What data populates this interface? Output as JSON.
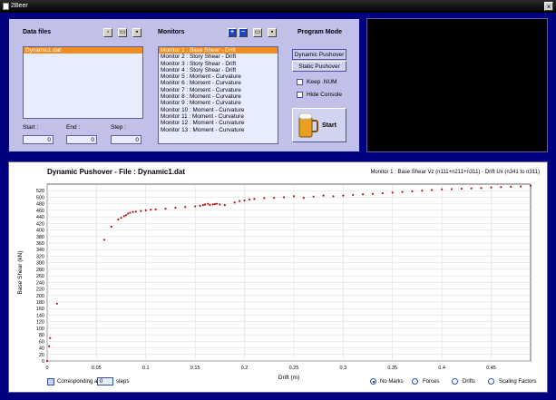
{
  "window": {
    "title": "2Beer"
  },
  "data_files": {
    "label": "Data files",
    "items": [
      "Dynamic1.dat"
    ],
    "start_label": "Start :",
    "start_value": "0",
    "end_label": "End :",
    "end_value": "0",
    "step_label": "Step :",
    "step_value": "0"
  },
  "monitors": {
    "label": "Monitors",
    "items": [
      "Monitor 1 : Base Shear - Drift",
      "Monitor 2 : Story Shear - Drift",
      "Monitor 3 : Story Shear - Drift",
      "Monitor 4 : Story Shear - Drift",
      "Monitor 5 : Moment - Curvature",
      "Monitor 6 : Moment - Curvature",
      "Monitor 7 : Moment - Curvature",
      "Monitor 8 : Moment - Curvature",
      "Monitor 9 : Moment - Curvature",
      "Monitor 10 : Moment - Curvature",
      "Monitor 11 : Moment - Curvature",
      "Monitor 12 : Moment - Curvature",
      "Monitor 13 : Moment - Curvature"
    ]
  },
  "program_mode": {
    "label": "Program Mode",
    "dynamic_btn": "Dynamic Pushover",
    "static_btn": "Static Pushover",
    "keep_num": "Keep .NUM",
    "hide_console": "Hide Console",
    "start": "Start"
  },
  "chart_header": {
    "title": "Dynamic Pushover - File : Dynamic1.dat",
    "subtitle": "Monitor 1 : Base Shear Vz (n111+n211+n311) - Drift Ux (n341 to n311)"
  },
  "chart_data": {
    "type": "scatter",
    "xlabel": "Drift (m)",
    "ylabel": "Base Shear (kN)",
    "xlim": [
      0,
      0.49
    ],
    "ylim": [
      0,
      540
    ],
    "xticks": [
      "0",
      "0.05",
      "0.1",
      "0.15",
      "0.2",
      "0.25",
      "0.3",
      "0.35",
      "0.4",
      "0.45"
    ],
    "yticks": [
      "0",
      "20",
      "40",
      "60",
      "80",
      "100",
      "120",
      "140",
      "160",
      "180",
      "200",
      "220",
      "240",
      "260",
      "280",
      "300",
      "320",
      "340",
      "360",
      "380",
      "400",
      "420",
      "440",
      "460",
      "480",
      "500",
      "520"
    ],
    "grid": true,
    "color": "#b01818",
    "points": [
      [
        0.0,
        0
      ],
      [
        0.002,
        45
      ],
      [
        0.003,
        70
      ],
      [
        0.01,
        175
      ],
      [
        0.058,
        370
      ],
      [
        0.065,
        410
      ],
      [
        0.072,
        432
      ],
      [
        0.075,
        437
      ],
      [
        0.078,
        442
      ],
      [
        0.08,
        445
      ],
      [
        0.082,
        450
      ],
      [
        0.084,
        453
      ],
      [
        0.087,
        455
      ],
      [
        0.09,
        456
      ],
      [
        0.095,
        458
      ],
      [
        0.1,
        460
      ],
      [
        0.105,
        462
      ],
      [
        0.11,
        463
      ],
      [
        0.12,
        465
      ],
      [
        0.13,
        468
      ],
      [
        0.14,
        470
      ],
      [
        0.15,
        472
      ],
      [
        0.155,
        474
      ],
      [
        0.158,
        476
      ],
      [
        0.16,
        478
      ],
      [
        0.163,
        480
      ],
      [
        0.165,
        476
      ],
      [
        0.168,
        478
      ],
      [
        0.17,
        479
      ],
      [
        0.172,
        480
      ],
      [
        0.175,
        478
      ],
      [
        0.18,
        476
      ],
      [
        0.19,
        484
      ],
      [
        0.195,
        488
      ],
      [
        0.2,
        490
      ],
      [
        0.205,
        493
      ],
      [
        0.21,
        495
      ],
      [
        0.22,
        497
      ],
      [
        0.23,
        498
      ],
      [
        0.24,
        500
      ],
      [
        0.25,
        503
      ],
      [
        0.26,
        498
      ],
      [
        0.27,
        502
      ],
      [
        0.28,
        505
      ],
      [
        0.29,
        503
      ],
      [
        0.3,
        505
      ],
      [
        0.31,
        507
      ],
      [
        0.32,
        509
      ],
      [
        0.33,
        510
      ],
      [
        0.34,
        512
      ],
      [
        0.35,
        514
      ],
      [
        0.36,
        516
      ],
      [
        0.37,
        518
      ],
      [
        0.38,
        520
      ],
      [
        0.39,
        522
      ],
      [
        0.4,
        524
      ],
      [
        0.41,
        525
      ],
      [
        0.42,
        526
      ],
      [
        0.43,
        527
      ],
      [
        0.44,
        528
      ],
      [
        0.45,
        530
      ],
      [
        0.46,
        531
      ],
      [
        0.47,
        532
      ],
      [
        0.48,
        533
      ],
      [
        0.49,
        535
      ]
    ]
  },
  "footer": {
    "corresponding_label": "Corresponding a",
    "steps_value": "0",
    "steps_label": "steps",
    "no_marks": "No Marks",
    "forces": "Forces",
    "drifts": "Drifts",
    "scaling": "Scaling Factors"
  }
}
